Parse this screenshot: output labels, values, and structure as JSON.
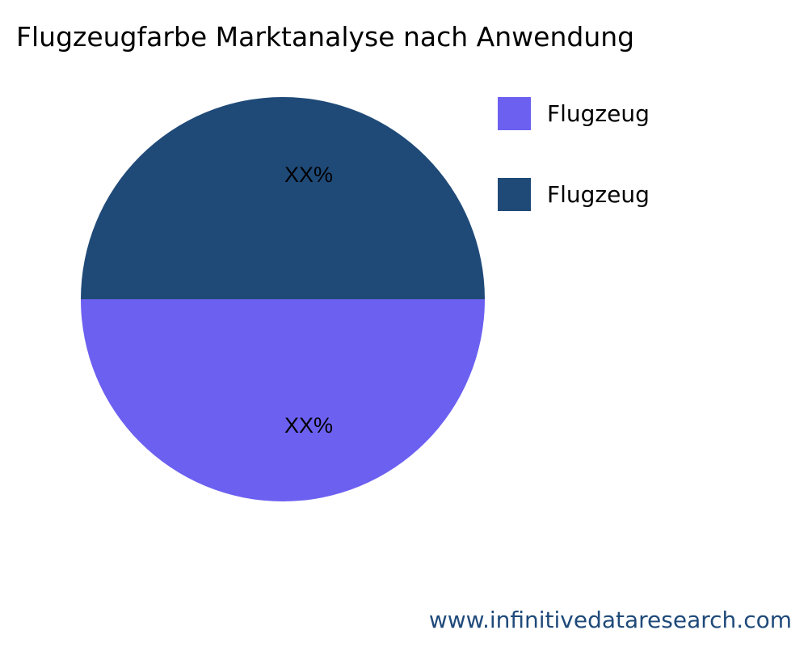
{
  "chart_data": {
    "type": "pie",
    "title": "Flugzeugfarbe Marktanalyse nach Anwendung",
    "slices": [
      {
        "label": "Flugzeug",
        "value": 50,
        "data_label": "XX%",
        "color": "#6c60f1"
      },
      {
        "label": "Flugzeug",
        "value": 50,
        "data_label": "XX%",
        "color": "#1f4a78"
      }
    ],
    "legend_placement": "top-right"
  },
  "footer": "www.infinitivedataresearch.com"
}
